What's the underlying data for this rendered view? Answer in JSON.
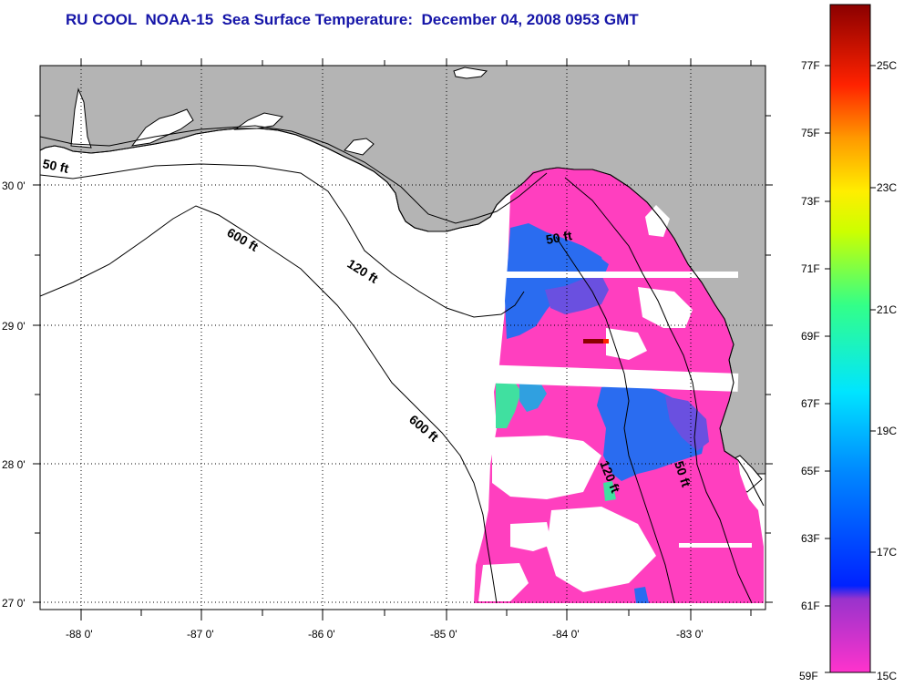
{
  "title": "RU COOL  NOAA-15  Sea Surface Temperature:  December 04, 2008 0953 GMT",
  "longitude_labels": [
    "-88 0'",
    "-87 0'",
    "-86 0'",
    "-85 0'",
    "-84 0'",
    "-83 0'"
  ],
  "latitude_labels": [
    "30 0'",
    "29 0'",
    "28 0'",
    "27 0'"
  ],
  "contour_labels": {
    "c50_west": "50 ft",
    "c600_north": "600 ft",
    "c120_north": "120 ft",
    "c50_north": "50 ft",
    "c600_south": "600 ft",
    "c120_south": "120 ft",
    "c50_south": "50 ft"
  },
  "colorbar": {
    "fahrenheit_labels": [
      "77F",
      "75F",
      "73F",
      "71F",
      "69F",
      "67F",
      "65F",
      "63F",
      "61F",
      "59F"
    ],
    "celsius_labels": [
      "25C",
      "23C",
      "21C",
      "19C",
      "17C",
      "15C"
    ],
    "colors": [
      "#ff33cc",
      "#6633cc",
      "#0022ff",
      "#0088ff",
      "#00e5ff",
      "#33ff88",
      "#ccff00",
      "#ffee00",
      "#ff9900",
      "#ff2200",
      "#8b0000"
    ]
  },
  "colors": {
    "land": "#b4b4b4",
    "ocean": "#ffffff",
    "title": "#1515a8",
    "sst_magenta": "#ff3fbf",
    "sst_blue": "#2a6cf0",
    "sst_purple": "#6a50e0"
  }
}
